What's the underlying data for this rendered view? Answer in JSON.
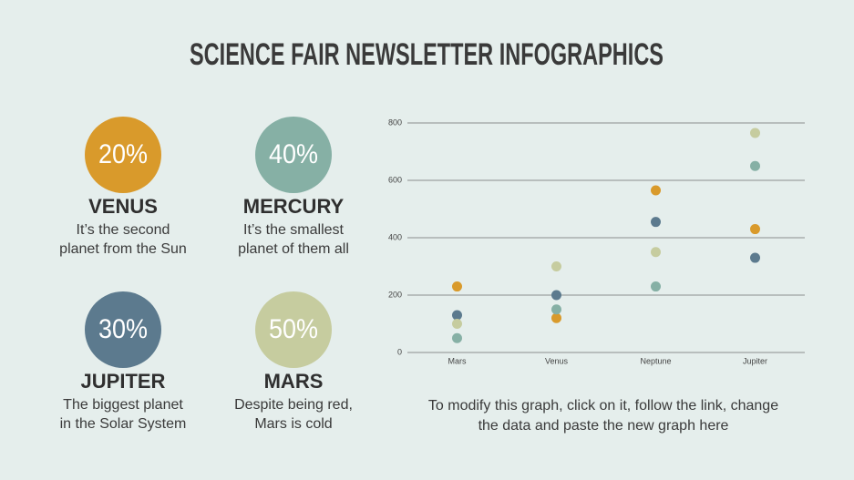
{
  "title": "SCIENCE FAIR NEWSLETTER INFOGRAPHICS",
  "items": [
    {
      "percent": "20%",
      "name": "VENUS",
      "lines": [
        "It’s the second",
        "planet from the Sun"
      ],
      "color": "#d99a2b"
    },
    {
      "percent": "40%",
      "name": "MERCURY",
      "lines": [
        "It’s the smallest",
        "planet of them all"
      ],
      "color": "#86b0a5"
    },
    {
      "percent": "30%",
      "name": "JUPITER",
      "lines": [
        "The biggest planet",
        "in the Solar System"
      ],
      "color": "#5c7a8e"
    },
    {
      "percent": "50%",
      "name": "MARS",
      "lines": [
        "Despite being red,",
        "Mars is cold"
      ],
      "color": "#c6cc9f"
    }
  ],
  "caption": [
    "To modify this graph, click on it, follow the link, change",
    "the data and paste the new graph here"
  ],
  "chart_data": {
    "type": "scatter",
    "categories": [
      "Mars",
      "Venus",
      "Neptune",
      "Jupiter"
    ],
    "series": [
      {
        "color": "#d99a2b",
        "values": [
          230,
          120,
          565,
          430
        ]
      },
      {
        "color": "#5c7a8e",
        "values": [
          130,
          200,
          455,
          330
        ]
      },
      {
        "color": "#c6cc9f",
        "values": [
          100,
          300,
          350,
          765
        ]
      },
      {
        "color": "#86b0a5",
        "values": [
          50,
          150,
          230,
          650
        ]
      }
    ],
    "ylim": [
      0,
      800
    ],
    "yticks": [
      0,
      200,
      400,
      600,
      800
    ],
    "grid": true
  }
}
